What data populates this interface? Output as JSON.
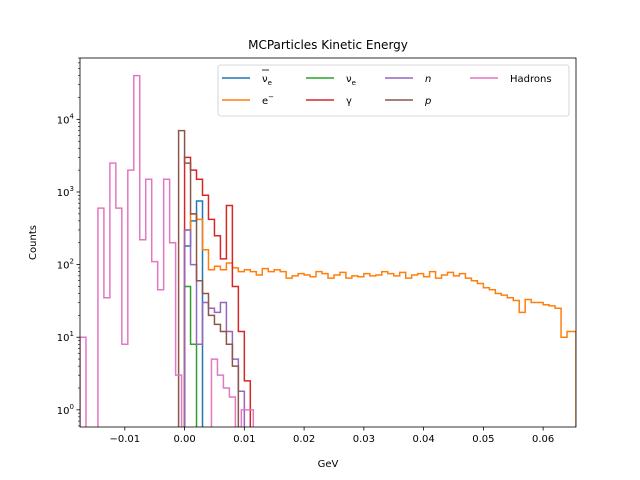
{
  "chart_data": {
    "type": "histogram-step",
    "title": "MCParticles Kinetic Energy",
    "xlabel": "GeV",
    "ylabel": "Counts",
    "xlim": [
      -0.0175,
      0.0655
    ],
    "ylim": [
      0.58,
      70000
    ],
    "yscale": "log",
    "legend_position": "top-right",
    "legend_ncol": 4,
    "x_ticks": [
      {
        "value": -0.01,
        "label": "−0.01"
      },
      {
        "value": 0.0,
        "label": "0.00"
      },
      {
        "value": 0.01,
        "label": "0.01"
      },
      {
        "value": 0.02,
        "label": "0.02"
      },
      {
        "value": 0.03,
        "label": "0.03"
      },
      {
        "value": 0.04,
        "label": "0.04"
      },
      {
        "value": 0.05,
        "label": "0.05"
      },
      {
        "value": 0.06,
        "label": "0.06"
      }
    ],
    "y_ticks": [
      {
        "value": 1,
        "base": "10",
        "exp": "0"
      },
      {
        "value": 10,
        "base": "10",
        "exp": "1"
      },
      {
        "value": 100,
        "base": "10",
        "exp": "2"
      },
      {
        "value": 1000,
        "base": "10",
        "exp": "3"
      },
      {
        "value": 10000,
        "base": "10",
        "exp": "4"
      }
    ],
    "series": [
      {
        "key": "antinu_e",
        "name": "ν̅e",
        "color": "#1f77b4",
        "legend_base": "ν",
        "legend_sub": "e",
        "legend_overbar": true,
        "bins": [
          [
            0.0,
            0.001,
            180
          ],
          [
            0.001,
            0.002,
            400
          ],
          [
            0.002,
            0.003,
            750
          ],
          [
            0.003,
            0.004,
            0.5
          ]
        ]
      },
      {
        "key": "electron",
        "name": "e⁻",
        "color": "#ff7f0e",
        "legend_base": "e",
        "legend_sup": "−",
        "bins": [
          [
            0.0,
            0.001,
            300
          ],
          [
            0.001,
            0.002,
            500
          ],
          [
            0.002,
            0.003,
            420
          ],
          [
            0.003,
            0.004,
            160
          ],
          [
            0.004,
            0.005,
            85
          ],
          [
            0.005,
            0.006,
            95
          ],
          [
            0.006,
            0.007,
            85
          ],
          [
            0.007,
            0.008,
            105
          ],
          [
            0.008,
            0.009,
            90
          ],
          [
            0.009,
            0.01,
            80
          ],
          [
            0.01,
            0.011,
            85
          ],
          [
            0.011,
            0.012,
            80
          ],
          [
            0.012,
            0.013,
            72
          ],
          [
            0.013,
            0.014,
            88
          ],
          [
            0.014,
            0.015,
            80
          ],
          [
            0.015,
            0.016,
            85
          ],
          [
            0.016,
            0.017,
            80
          ],
          [
            0.017,
            0.018,
            65
          ],
          [
            0.018,
            0.019,
            70
          ],
          [
            0.019,
            0.02,
            75
          ],
          [
            0.02,
            0.021,
            72
          ],
          [
            0.021,
            0.022,
            68
          ],
          [
            0.022,
            0.023,
            80
          ],
          [
            0.023,
            0.024,
            75
          ],
          [
            0.024,
            0.025,
            65
          ],
          [
            0.025,
            0.026,
            72
          ],
          [
            0.026,
            0.027,
            78
          ],
          [
            0.027,
            0.028,
            65
          ],
          [
            0.028,
            0.029,
            70
          ],
          [
            0.029,
            0.03,
            68
          ],
          [
            0.03,
            0.031,
            75
          ],
          [
            0.031,
            0.032,
            70
          ],
          [
            0.032,
            0.033,
            72
          ],
          [
            0.033,
            0.034,
            80
          ],
          [
            0.034,
            0.035,
            75
          ],
          [
            0.035,
            0.036,
            70
          ],
          [
            0.036,
            0.037,
            78
          ],
          [
            0.037,
            0.038,
            65
          ],
          [
            0.038,
            0.039,
            72
          ],
          [
            0.039,
            0.04,
            75
          ],
          [
            0.04,
            0.041,
            68
          ],
          [
            0.041,
            0.042,
            80
          ],
          [
            0.042,
            0.043,
            65
          ],
          [
            0.043,
            0.044,
            72
          ],
          [
            0.044,
            0.045,
            78
          ],
          [
            0.045,
            0.046,
            70
          ],
          [
            0.046,
            0.047,
            75
          ],
          [
            0.047,
            0.048,
            65
          ],
          [
            0.048,
            0.049,
            60
          ],
          [
            0.049,
            0.05,
            55
          ],
          [
            0.05,
            0.051,
            48
          ],
          [
            0.051,
            0.052,
            45
          ],
          [
            0.052,
            0.053,
            40
          ],
          [
            0.053,
            0.054,
            38
          ],
          [
            0.054,
            0.055,
            35
          ],
          [
            0.055,
            0.056,
            32
          ],
          [
            0.056,
            0.057,
            22
          ],
          [
            0.057,
            0.058,
            33
          ],
          [
            0.058,
            0.059,
            30
          ],
          [
            0.059,
            0.06,
            30
          ],
          [
            0.06,
            0.061,
            28
          ],
          [
            0.061,
            0.062,
            27
          ],
          [
            0.062,
            0.063,
            25
          ],
          [
            0.063,
            0.064,
            10
          ],
          [
            0.064,
            0.0655,
            12
          ]
        ]
      },
      {
        "key": "nu_e",
        "name": "νe",
        "color": "#2ca02c",
        "legend_base": "ν",
        "legend_sub": "e",
        "bins": [
          [
            0.0,
            0.001,
            50
          ],
          [
            0.001,
            0.002,
            8
          ],
          [
            0.002,
            0.003,
            0.5
          ]
        ]
      },
      {
        "key": "gamma",
        "name": "γ",
        "color": "#d62728",
        "legend_base": "γ",
        "bins": [
          [
            0.0,
            0.001,
            3000
          ],
          [
            0.001,
            0.002,
            2000
          ],
          [
            0.002,
            0.003,
            1500
          ],
          [
            0.003,
            0.004,
            900
          ],
          [
            0.004,
            0.005,
            420
          ],
          [
            0.005,
            0.006,
            250
          ],
          [
            0.006,
            0.007,
            120
          ],
          [
            0.007,
            0.008,
            650
          ],
          [
            0.008,
            0.009,
            50
          ],
          [
            0.009,
            0.01,
            12
          ],
          [
            0.01,
            0.011,
            2.5
          ],
          [
            0.011,
            0.012,
            0.5
          ]
        ]
      },
      {
        "key": "neutron",
        "name": "n",
        "color": "#9467bd",
        "legend_base": "n",
        "legend_italic": true,
        "bins": [
          [
            0.0,
            0.001,
            300
          ],
          [
            0.001,
            0.002,
            100
          ],
          [
            0.002,
            0.003,
            8
          ],
          [
            0.003,
            0.004,
            30
          ],
          [
            0.004,
            0.005,
            25
          ],
          [
            0.005,
            0.006,
            22
          ],
          [
            0.006,
            0.007,
            30
          ],
          [
            0.007,
            0.008,
            12
          ],
          [
            0.008,
            0.009,
            5
          ],
          [
            0.009,
            0.01,
            1.8
          ],
          [
            0.01,
            0.011,
            0.5
          ]
        ]
      },
      {
        "key": "proton",
        "name": "p",
        "color": "#8c564b",
        "legend_base": "p",
        "legend_italic": true,
        "bins": [
          [
            -0.001,
            0.0,
            7000
          ],
          [
            0.0,
            0.001,
            2500
          ],
          [
            0.001,
            0.002,
            500
          ],
          [
            0.002,
            0.003,
            60
          ],
          [
            0.003,
            0.004,
            40
          ],
          [
            0.004,
            0.005,
            20
          ],
          [
            0.005,
            0.006,
            15
          ],
          [
            0.006,
            0.007,
            12
          ],
          [
            0.007,
            0.008,
            8
          ],
          [
            0.008,
            0.009,
            4
          ],
          [
            0.009,
            0.01,
            0.5
          ]
        ]
      },
      {
        "key": "hadrons",
        "name": "Hadrons",
        "color": "#e377c2",
        "legend_base": "Hadrons",
        "bins": [
          [
            -0.0175,
            -0.0165,
            10
          ],
          [
            -0.0165,
            -0.0155,
            0.5
          ],
          [
            -0.0155,
            -0.0145,
            0.5
          ],
          [
            -0.0145,
            -0.0135,
            600
          ],
          [
            -0.0135,
            -0.0125,
            35
          ],
          [
            -0.0125,
            -0.0115,
            2500
          ],
          [
            -0.0115,
            -0.0105,
            600
          ],
          [
            -0.0105,
            -0.0095,
            8
          ],
          [
            -0.0095,
            -0.0085,
            2000
          ],
          [
            -0.0085,
            -0.0075,
            40000
          ],
          [
            -0.0075,
            -0.0065,
            220
          ],
          [
            -0.0065,
            -0.0055,
            1500
          ],
          [
            -0.0055,
            -0.0045,
            110
          ],
          [
            -0.0045,
            -0.0035,
            45
          ],
          [
            -0.0035,
            -0.0025,
            1500
          ],
          [
            -0.0025,
            -0.0015,
            200
          ],
          [
            -0.0015,
            -0.0005,
            3
          ],
          [
            -0.0005,
            0.0005,
            0.5
          ],
          [
            0.0005,
            0.0015,
            0.5
          ],
          [
            0.0015,
            0.0025,
            0.5
          ],
          [
            0.0025,
            0.0035,
            0.5
          ],
          [
            0.0035,
            0.0045,
            0.5
          ],
          [
            0.0045,
            0.0055,
            5
          ],
          [
            0.0055,
            0.0065,
            3
          ],
          [
            0.0065,
            0.0075,
            2
          ],
          [
            0.0075,
            0.0085,
            1.5
          ],
          [
            0.0085,
            0.0095,
            0.5
          ],
          [
            0.0095,
            0.0105,
            1
          ],
          [
            0.0105,
            0.0115,
            1
          ],
          [
            0.0115,
            0.0125,
            0.5
          ]
        ]
      }
    ]
  }
}
